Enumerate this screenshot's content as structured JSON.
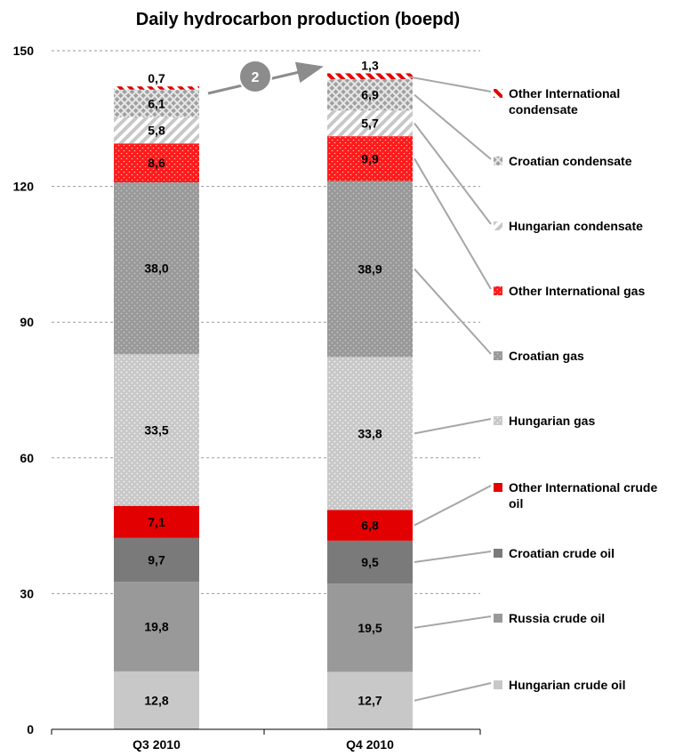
{
  "chart_data": {
    "type": "bar",
    "stacked": true,
    "title": "Daily hydrocarbon production (boepd)",
    "categories": [
      "Q3 2010",
      "Q4 2010"
    ],
    "ylim": [
      0,
      150
    ],
    "yticks": [
      0,
      30,
      60,
      90,
      120,
      150
    ],
    "grid": true,
    "legend_position": "right",
    "series": [
      {
        "name": "Hungarian crude oil",
        "values": [
          12.8,
          12.7
        ],
        "labels": [
          "12,8",
          "12,7"
        ],
        "color": "#c8c8c8",
        "pattern": "solid"
      },
      {
        "name": "Russia crude oil",
        "values": [
          19.8,
          19.5
        ],
        "labels": [
          "19,8",
          "19,5"
        ],
        "color": "#999999",
        "pattern": "solid"
      },
      {
        "name": "Croatian crude oil",
        "values": [
          9.7,
          9.5
        ],
        "labels": [
          "9,7",
          "9,5"
        ],
        "color": "#7a7a7a",
        "pattern": "solid"
      },
      {
        "name": "Other International crude oil",
        "values": [
          7.1,
          6.8
        ],
        "labels": [
          "7,1",
          "6,8"
        ],
        "color": "#e30000",
        "pattern": "solid"
      },
      {
        "name": "Hungarian gas",
        "values": [
          33.5,
          33.8
        ],
        "labels": [
          "33,5",
          "33,8"
        ],
        "color": "#c8c8c8",
        "pattern": "dots"
      },
      {
        "name": "Croatian gas",
        "values": [
          38.0,
          38.9
        ],
        "labels": [
          "38,0",
          "38,9"
        ],
        "color": "#999999",
        "pattern": "dots"
      },
      {
        "name": "Other International gas",
        "values": [
          8.6,
          9.9
        ],
        "labels": [
          "8,6",
          "9,9"
        ],
        "color": "#ff1a1a",
        "pattern": "dots"
      },
      {
        "name": "Hungarian condensate",
        "values": [
          5.8,
          5.7
        ],
        "labels": [
          "5,8",
          "5,7"
        ],
        "color": "#c8c8c8",
        "pattern": "diagonal"
      },
      {
        "name": "Croatian condensate",
        "values": [
          6.1,
          6.9
        ],
        "labels": [
          "6,1",
          "6,9"
        ],
        "color": "#a0a0a0",
        "pattern": "crosshatch"
      },
      {
        "name": "Other International condensate",
        "values": [
          0.7,
          1.3
        ],
        "labels": [
          "0,7",
          "1,3"
        ],
        "color": "#e30000",
        "pattern": "diagonal"
      }
    ],
    "annotations": [
      {
        "text": "2",
        "shape": "circle-arrow",
        "from_category": "Q3 2010",
        "to_category": "Q4 2010"
      }
    ]
  }
}
